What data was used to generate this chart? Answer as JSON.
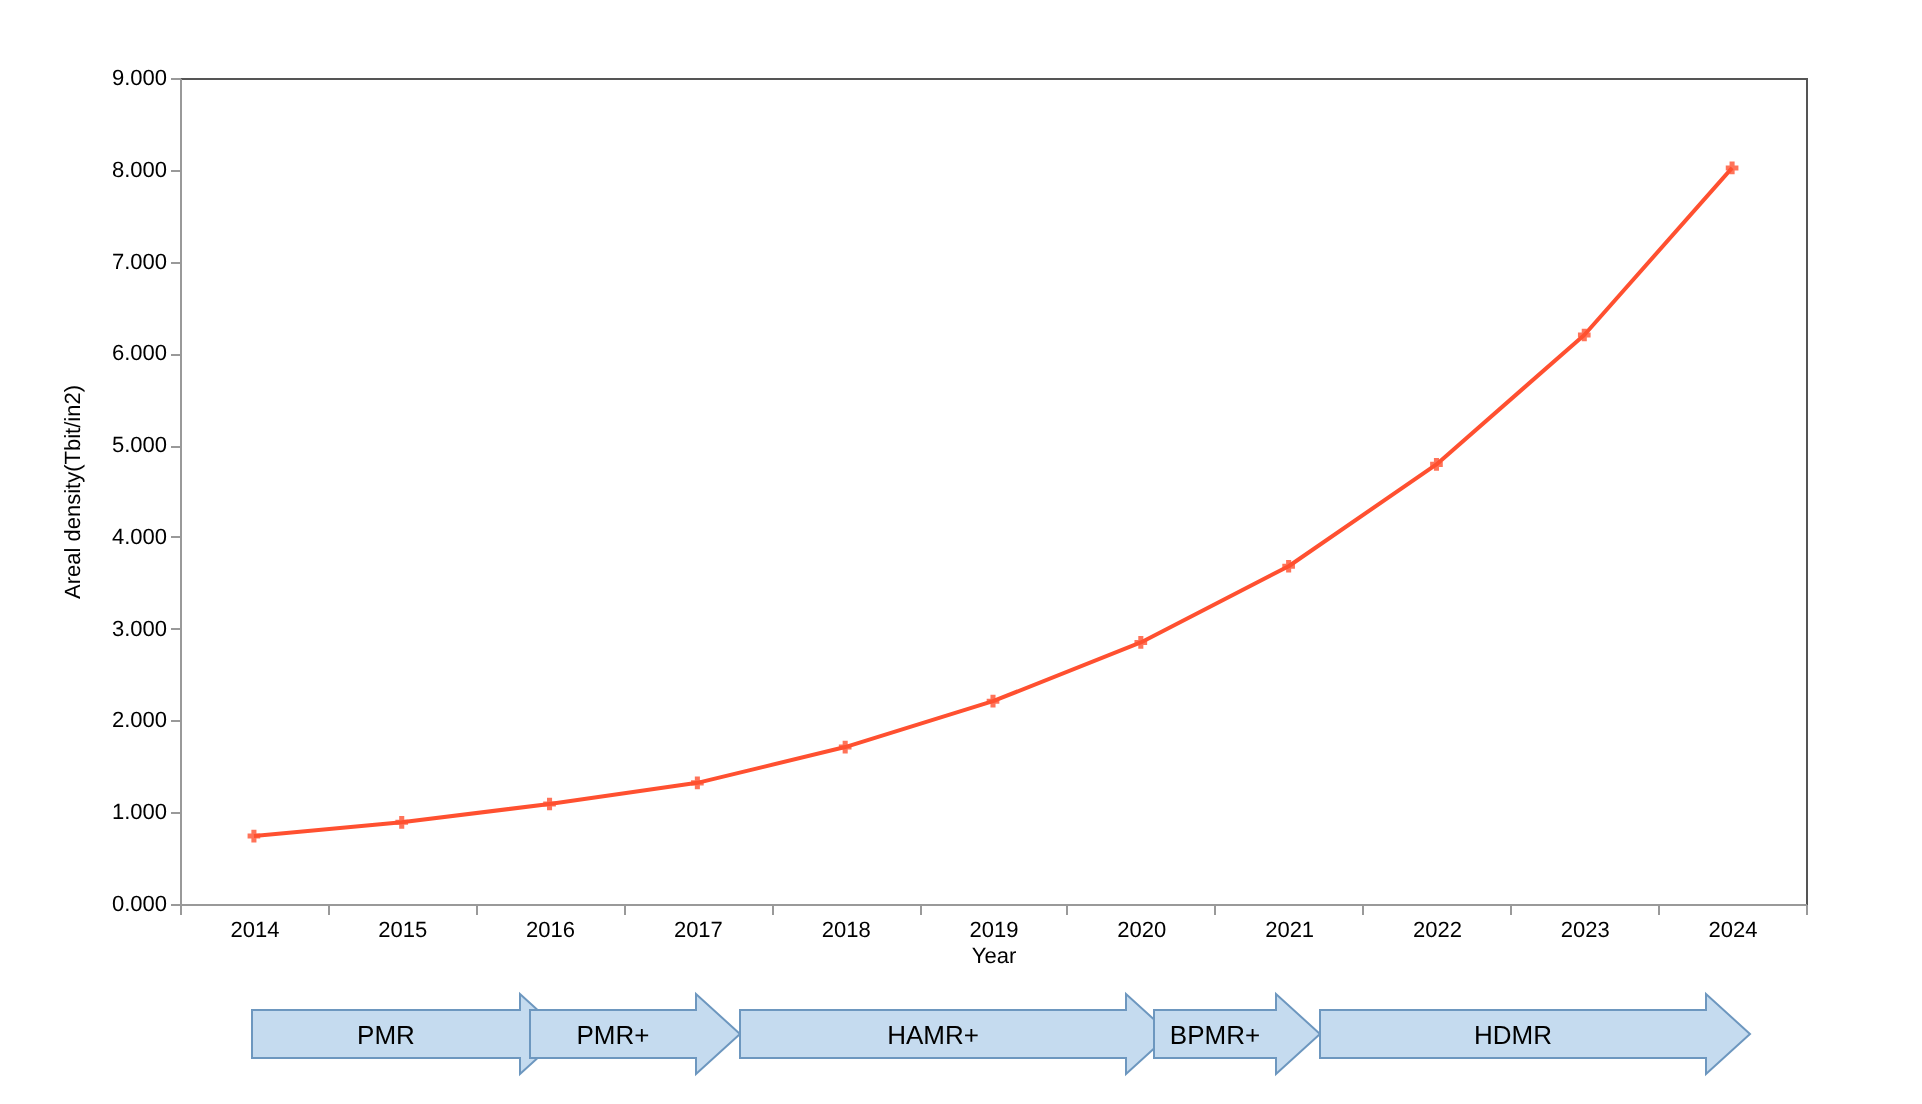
{
  "chart_data": {
    "type": "line",
    "xlabel": "Year",
    "ylabel": "Areal density(Tbit/in2)",
    "categories": [
      "2014",
      "2015",
      "2016",
      "2017",
      "2018",
      "2019",
      "2020",
      "2021",
      "2022",
      "2023",
      "2024"
    ],
    "series": [
      {
        "color": "#ff5030",
        "values": [
          0.74,
          0.89,
          1.09,
          1.32,
          1.71,
          2.21,
          2.85,
          3.68,
          4.79,
          6.2,
          8.02
        ]
      }
    ],
    "ylim": [
      0,
      9
    ],
    "yticks": [
      {
        "value": 0,
        "label": "0.000"
      },
      {
        "value": 1,
        "label": "1.000"
      },
      {
        "value": 2,
        "label": "2.000"
      },
      {
        "value": 3,
        "label": "3.000"
      },
      {
        "value": 4,
        "label": "4.000"
      },
      {
        "value": 5,
        "label": "5.000"
      },
      {
        "value": 6,
        "label": "6.000"
      },
      {
        "value": 7,
        "label": "7.000"
      },
      {
        "value": 8,
        "label": "8.000"
      },
      {
        "value": 9,
        "label": "9.000"
      }
    ],
    "grid": false,
    "legend": false,
    "marker": "cross",
    "line_style": "solid",
    "annotations": [
      "PMR",
      "PMR+",
      "HAMR+",
      "BPMR+",
      "HDMR"
    ]
  }
}
